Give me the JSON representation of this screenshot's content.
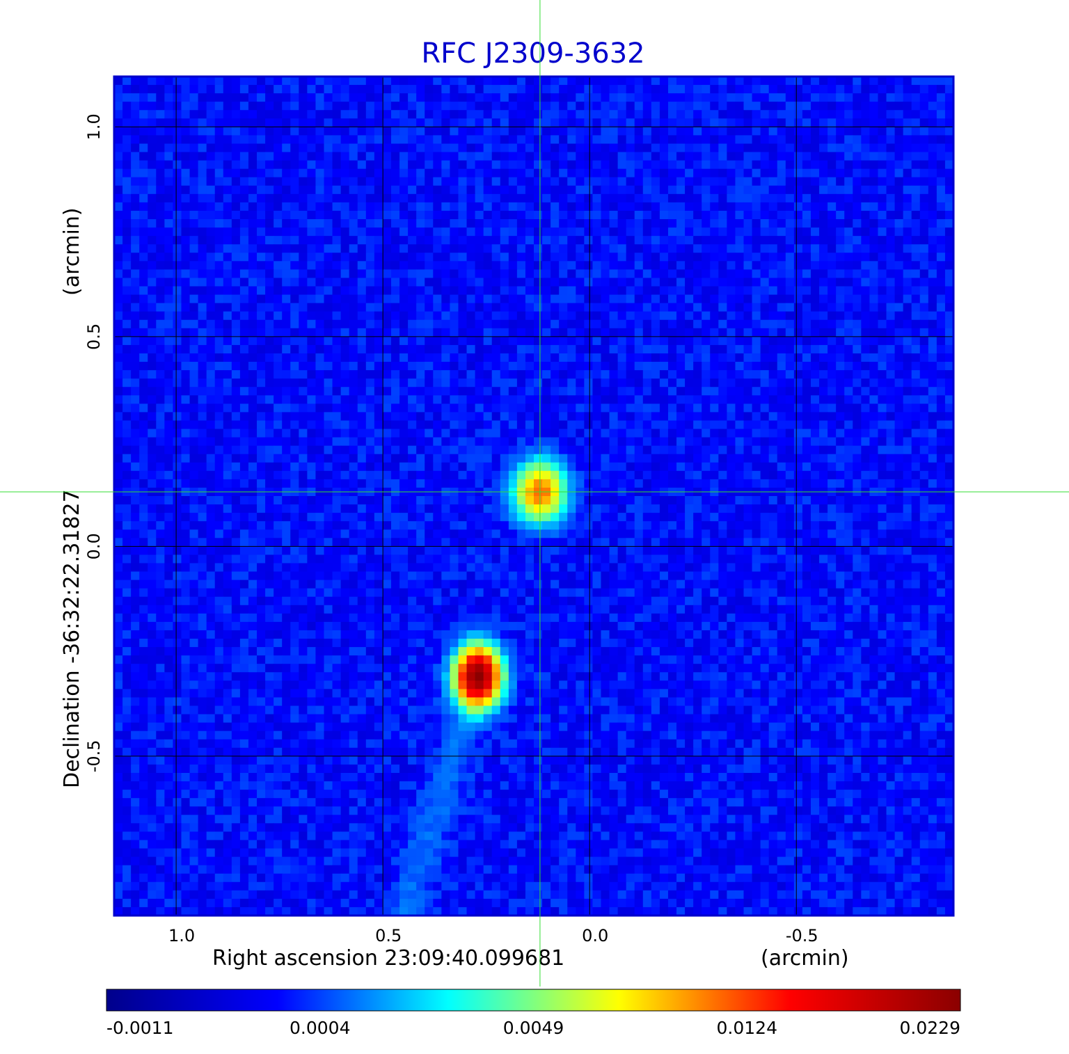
{
  "chart_data": {
    "type": "heatmap",
    "title": "RFC J2309-3632",
    "xlabel": "Right ascension  23:09:40.099681",
    "xunit": "(arcmin)",
    "ylabel": "Declination  -36:32:22.31827",
    "yunit": "(arcmin)",
    "xlim": [
      1.15,
      -0.88
    ],
    "ylim": [
      -0.88,
      1.12
    ],
    "x_ticks": [
      1.0,
      0.5,
      0.0,
      -0.5
    ],
    "x_tick_labels": [
      "1.0",
      "0.5",
      "0.0",
      "-0.5"
    ],
    "y_ticks": [
      1.0,
      0.5,
      0.0,
      -0.5
    ],
    "y_tick_labels": [
      "1.0",
      "0.5",
      "0.0",
      "-0.5"
    ],
    "grid": true,
    "crosshair": {
      "x": 0.12,
      "y": 0.13,
      "color": "#33dd33"
    },
    "colorbar": {
      "orientation": "horizontal",
      "placement": "bottom",
      "tick_labels": [
        "-0.0011",
        "0.0004",
        "0.0049",
        "0.0124",
        "0.0229"
      ],
      "colormap": [
        "#00008b",
        "#0000ff",
        "#00ffff",
        "#ffff00",
        "#ff0000",
        "#8b0000"
      ]
    },
    "components": [
      {
        "x": 0.12,
        "y": 0.13,
        "peak": 0.0115,
        "sx": 0.04,
        "sy": 0.045
      },
      {
        "x": 0.27,
        "y": -0.31,
        "peak": 0.0229,
        "sx": 0.035,
        "sy": 0.045
      }
    ],
    "jet": {
      "from": [
        0.28,
        -0.35
      ],
      "to": [
        0.45,
        -0.88
      ],
      "level": 0.0009
    },
    "background_level": 0.0001,
    "noise_amplitude": 0.00035,
    "colors": {
      "title": "#0000cc",
      "frame": "#0000cc",
      "grid": "#000000",
      "text": "#000000"
    }
  }
}
